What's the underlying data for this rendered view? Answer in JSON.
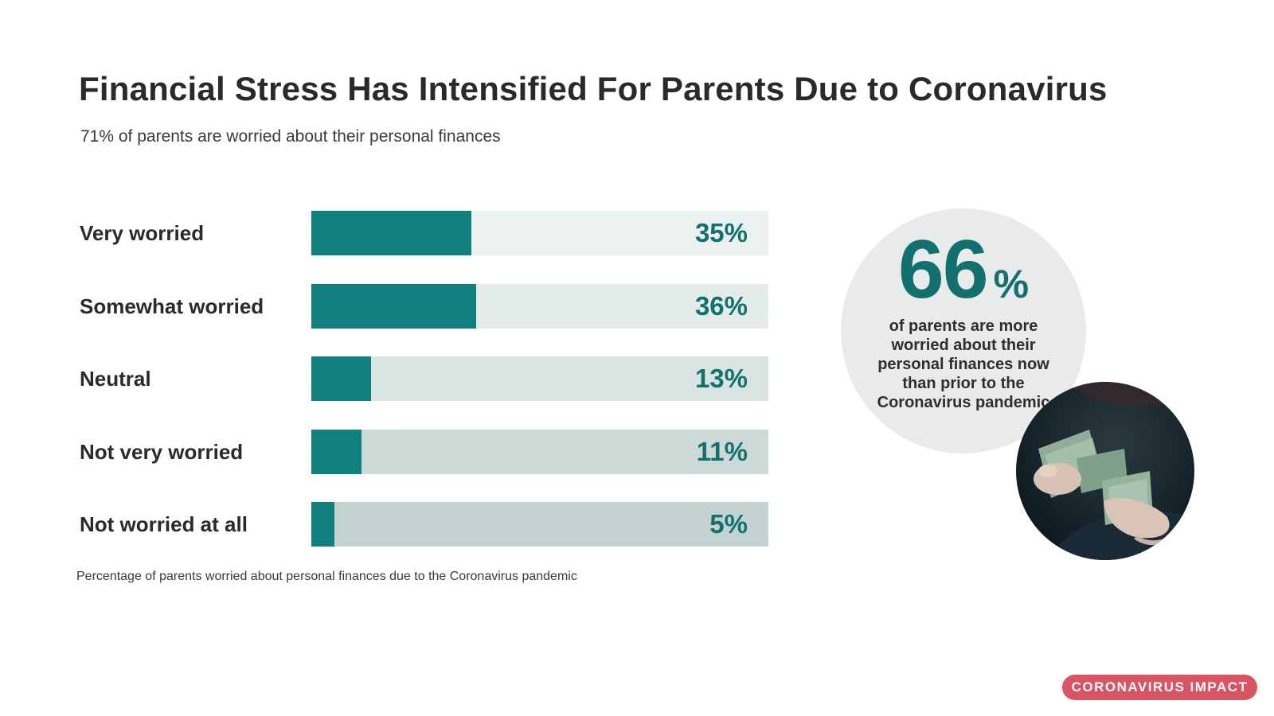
{
  "title": "Financial Stress Has Intensified For Parents Due to Coronavirus",
  "subtitle": "71% of parents are worried about their personal finances",
  "chart_data": {
    "type": "bar",
    "orientation": "horizontal",
    "categories": [
      "Very worried",
      "Somewhat worried",
      "Neutral",
      "Not very worried",
      "Not worried at all"
    ],
    "values": [
      35,
      36,
      13,
      11,
      5
    ],
    "value_labels": [
      "35%",
      "36%",
      "13%",
      "11%",
      "5%"
    ],
    "unit": "%",
    "xlim": [
      0,
      100
    ],
    "grid": false,
    "legend": "none",
    "colors": {
      "bar": "#0f807d",
      "tracks": [
        "#ebf1f0",
        "#e4ecea",
        "#d9e4e2",
        "#cdd9d7",
        "#c4d3d1"
      ],
      "value_text": "#12716f"
    }
  },
  "caption": "Percentage of parents worried about personal finances due to the Coronavirus pandemic",
  "stat": {
    "number": "66",
    "percent_sign": "%",
    "text": "of parents are more worried about their personal finances now than prior to the Coronavirus pandemic"
  },
  "photo": {
    "icon": "hands-counting-money-photo"
  },
  "tag": {
    "label": "CORONAVIRUS IMPACT",
    "color": "#d95463"
  }
}
